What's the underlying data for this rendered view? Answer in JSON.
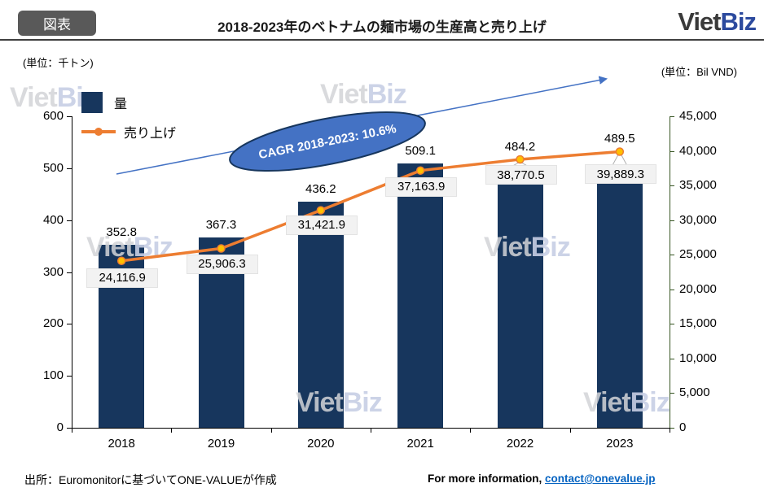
{
  "header": {
    "badge": "図表",
    "title": "2018-2023年のベトナムの麺市場の生産高と売り上げ",
    "logo_part1": "Viet",
    "logo_part2": "Biz"
  },
  "units": {
    "left": "(単位：千トン)",
    "right": "(単位：Bil VND)"
  },
  "legend": [
    {
      "label": "量"
    },
    {
      "label": "売り上げ"
    }
  ],
  "watermark": {
    "part1": "Viet",
    "part2": "Biz"
  },
  "annotation": {
    "cagr": "CAGR 2018-2023: 10.6%"
  },
  "footer": {
    "source": "出所：Euromonitorに基づいてONE-VALUEが作成",
    "info_prefix": "For more information, ",
    "info_link": "contact@onevalue.jp"
  },
  "chart_data": {
    "type": "bar",
    "subtype": "bar+line-combo",
    "title": "2018-2023年のベトナムの麺市場の生産高と売り上げ",
    "categories": [
      "2018",
      "2019",
      "2020",
      "2021",
      "2022",
      "2023"
    ],
    "series": [
      {
        "name": "量",
        "type": "bar",
        "axis": "left",
        "values": [
          352.8,
          367.3,
          436.2,
          509.1,
          484.2,
          489.5
        ],
        "labels": [
          "352.8",
          "367.3",
          "436.2",
          "509.1",
          "484.2",
          "489.5"
        ],
        "color": "#17365D",
        "unit": "千トン"
      },
      {
        "name": "売り上げ",
        "type": "line",
        "axis": "right",
        "values": [
          24116.9,
          25906.3,
          31421.9,
          37163.9,
          38770.5,
          39889.3
        ],
        "labels": [
          "24,116.9",
          "25,906.3",
          "31,421.9",
          "37,163.9",
          "38,770.5",
          "39,889.3"
        ],
        "color": "#ED7D31",
        "unit": "Bil VND"
      }
    ],
    "left_axis": {
      "min": 0,
      "max": 600,
      "step": 100,
      "ticks": [
        "0",
        "100",
        "200",
        "300",
        "400",
        "500",
        "600"
      ]
    },
    "right_axis": {
      "min": 0,
      "max": 45000,
      "step": 5000,
      "ticks": [
        "0",
        "5,000",
        "10,000",
        "15,000",
        "20,000",
        "25,000",
        "30,000",
        "35,000",
        "40,000",
        "45,000"
      ]
    },
    "grid": false,
    "legend_position": "top-left",
    "annotation": "CAGR 2018-2023: 10.6%"
  },
  "colors": {
    "bar": "#17365D",
    "line": "#ED7D31",
    "marker_fill": "#FFC000",
    "annotation_fill": "#4472C4",
    "annotation_border": "#17365D",
    "trend_arrow": "#4472C4",
    "right_axis": "#375623",
    "left_axis": "#000000",
    "label_box_bg": "#F2F2F2",
    "link": "#0563C1",
    "badge_bg": "#595959"
  }
}
